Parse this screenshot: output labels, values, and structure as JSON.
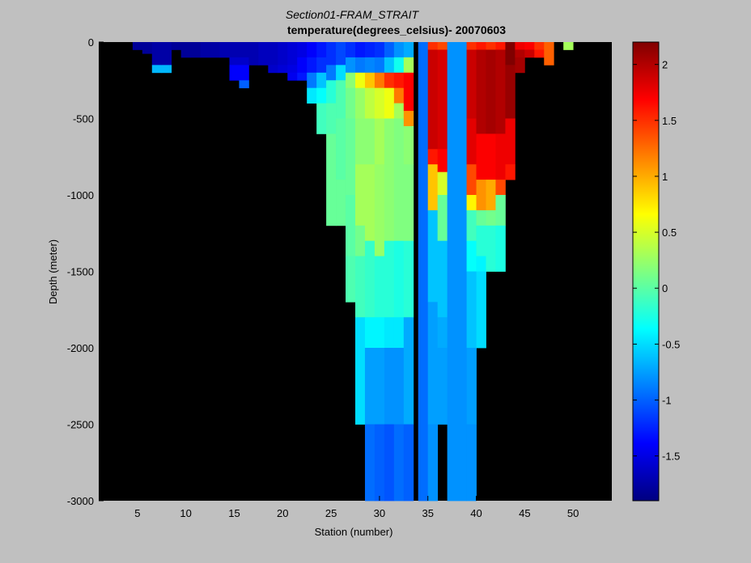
{
  "chart_data": {
    "type": "heatmap",
    "title": "Section01-FRAM_STRAIT",
    "subtitle": "temperature(degrees_celsius)- 20070603",
    "xlabel": "Station (number)",
    "ylabel": "Depth (meter)",
    "xlim": [
      1,
      54
    ],
    "ylim": [
      -3000,
      0
    ],
    "x_ticks": [
      5,
      10,
      15,
      20,
      25,
      30,
      35,
      40,
      45,
      50
    ],
    "y_ticks": [
      0,
      -500,
      -1000,
      -1500,
      -2000,
      -2500,
      -3000
    ],
    "colorbar": {
      "range": [
        -1.9,
        2.2
      ],
      "ticks": [
        2,
        1.5,
        1,
        0.5,
        0,
        -0.5,
        -1,
        -1.5
      ]
    },
    "background_color": "#000000",
    "stations": [
      {
        "x": 5,
        "w": 1.0,
        "cells": [
          [
            0,
            50,
            -1.8
          ]
        ]
      },
      {
        "x": 6,
        "w": 1.0,
        "cells": [
          [
            0,
            75,
            -1.8
          ]
        ]
      },
      {
        "x": 7,
        "w": 1.0,
        "cells": [
          [
            0,
            150,
            -1.75
          ],
          [
            150,
            200,
            -0.65
          ]
        ]
      },
      {
        "x": 8,
        "w": 1.0,
        "cells": [
          [
            0,
            150,
            -1.75
          ],
          [
            150,
            200,
            -0.65
          ]
        ]
      },
      {
        "x": 9,
        "w": 1.0,
        "cells": [
          [
            0,
            50,
            -1.8
          ]
        ]
      },
      {
        "x": 10,
        "w": 1.0,
        "cells": [
          [
            0,
            100,
            -1.8
          ]
        ]
      },
      {
        "x": 11,
        "w": 1.0,
        "cells": [
          [
            0,
            100,
            -1.8
          ]
        ]
      },
      {
        "x": 12,
        "w": 1.0,
        "cells": [
          [
            0,
            100,
            -1.75
          ]
        ]
      },
      {
        "x": 13,
        "w": 1.0,
        "cells": [
          [
            0,
            100,
            -1.75
          ]
        ]
      },
      {
        "x": 14,
        "w": 1.0,
        "cells": [
          [
            0,
            100,
            -1.7
          ]
        ]
      },
      {
        "x": 15,
        "w": 1.0,
        "cells": [
          [
            0,
            100,
            -1.7
          ],
          [
            100,
            150,
            -1.6
          ],
          [
            150,
            250,
            -1.4
          ]
        ]
      },
      {
        "x": 16,
        "w": 1.0,
        "cells": [
          [
            0,
            100,
            -1.7
          ],
          [
            100,
            150,
            -1.6
          ],
          [
            150,
            250,
            -1.4
          ],
          [
            250,
            300,
            -1.0
          ]
        ]
      },
      {
        "x": 17,
        "w": 1.0,
        "cells": [
          [
            0,
            150,
            -1.7
          ]
        ]
      },
      {
        "x": 18,
        "w": 1.0,
        "cells": [
          [
            0,
            150,
            -1.65
          ]
        ]
      },
      {
        "x": 19,
        "w": 1.0,
        "cells": [
          [
            0,
            150,
            -1.65
          ],
          [
            150,
            200,
            -1.6
          ]
        ]
      },
      {
        "x": 20,
        "w": 1.0,
        "cells": [
          [
            0,
            150,
            -1.6
          ],
          [
            150,
            200,
            -1.55
          ]
        ]
      },
      {
        "x": 21,
        "w": 1.0,
        "cells": [
          [
            0,
            150,
            -1.55
          ],
          [
            150,
            200,
            -1.5
          ],
          [
            200,
            250,
            -1.45
          ]
        ]
      },
      {
        "x": 22,
        "w": 1.0,
        "cells": [
          [
            0,
            100,
            -1.5
          ],
          [
            100,
            200,
            -1.4
          ],
          [
            200,
            250,
            -1.3
          ]
        ]
      },
      {
        "x": 23,
        "w": 1.0,
        "cells": [
          [
            0,
            100,
            -1.4
          ],
          [
            100,
            200,
            -1.3
          ],
          [
            200,
            300,
            -0.9
          ],
          [
            300,
            400,
            -0.45
          ]
        ]
      },
      {
        "x": 24,
        "w": 1.0,
        "cells": [
          [
            0,
            100,
            -1.3
          ],
          [
            100,
            200,
            -1.2
          ],
          [
            200,
            300,
            -0.6
          ],
          [
            300,
            400,
            -0.35
          ],
          [
            400,
            600,
            -0.1
          ]
        ]
      },
      {
        "x": 25,
        "w": 1.0,
        "cells": [
          [
            0,
            150,
            -1.2
          ],
          [
            150,
            250,
            -0.9
          ],
          [
            250,
            400,
            -0.2
          ],
          [
            400,
            600,
            -0.05
          ],
          [
            600,
            1200,
            0.05
          ]
        ]
      },
      {
        "x": 26,
        "w": 1.0,
        "cells": [
          [
            0,
            150,
            -1.1
          ],
          [
            150,
            250,
            -0.5
          ],
          [
            250,
            500,
            -0.05
          ],
          [
            500,
            900,
            0.0
          ],
          [
            900,
            1200,
            0.05
          ]
        ]
      },
      {
        "x": 27,
        "w": 1.0,
        "cells": [
          [
            0,
            100,
            -1.2
          ],
          [
            100,
            200,
            -0.8
          ],
          [
            200,
            300,
            0.2
          ],
          [
            300,
            500,
            0.1
          ],
          [
            500,
            1000,
            0.05
          ],
          [
            1000,
            1400,
            0.0
          ],
          [
            1400,
            1700,
            -0.05
          ]
        ]
      },
      {
        "x": 28,
        "w": 1.0,
        "cells": [
          [
            0,
            100,
            -1.3
          ],
          [
            100,
            200,
            -0.9
          ],
          [
            200,
            300,
            0.6
          ],
          [
            300,
            500,
            0.25
          ],
          [
            500,
            800,
            0.2
          ],
          [
            800,
            1200,
            0.3
          ],
          [
            1200,
            1400,
            0.1
          ],
          [
            1400,
            1800,
            -0.1
          ],
          [
            1800,
            2500,
            -0.5
          ]
        ]
      },
      {
        "x": 29,
        "w": 1.0,
        "cells": [
          [
            0,
            100,
            -1.25
          ],
          [
            100,
            200,
            -0.85
          ],
          [
            200,
            300,
            0.9
          ],
          [
            300,
            500,
            0.4
          ],
          [
            500,
            800,
            0.2
          ],
          [
            800,
            1300,
            0.3
          ],
          [
            1300,
            1800,
            -0.15
          ],
          [
            1800,
            2000,
            -0.4
          ],
          [
            2000,
            2500,
            -0.75
          ],
          [
            2500,
            3000,
            -0.95
          ]
        ]
      },
      {
        "x": 30,
        "w": 1.0,
        "cells": [
          [
            0,
            100,
            -1.2
          ],
          [
            100,
            200,
            -0.9
          ],
          [
            200,
            300,
            1.2
          ],
          [
            300,
            500,
            0.5
          ],
          [
            500,
            800,
            0.3
          ],
          [
            800,
            1400,
            0.25
          ],
          [
            1400,
            1800,
            -0.2
          ],
          [
            1800,
            2000,
            -0.4
          ],
          [
            2000,
            2500,
            -0.75
          ],
          [
            2500,
            3000,
            -1.0
          ]
        ]
      },
      {
        "x": 31,
        "w": 1.0,
        "cells": [
          [
            0,
            100,
            -1.0
          ],
          [
            100,
            200,
            -0.6
          ],
          [
            200,
            300,
            1.5
          ],
          [
            300,
            500,
            0.6
          ],
          [
            500,
            800,
            0.2
          ],
          [
            800,
            1300,
            0.2
          ],
          [
            1300,
            1800,
            -0.2
          ],
          [
            1800,
            2000,
            -0.45
          ],
          [
            2000,
            2500,
            -0.8
          ],
          [
            2500,
            3000,
            -1.05
          ]
        ]
      },
      {
        "x": 32,
        "w": 1.0,
        "cells": [
          [
            0,
            100,
            -0.8
          ],
          [
            100,
            200,
            -0.3
          ],
          [
            200,
            300,
            1.6
          ],
          [
            300,
            400,
            1.2
          ],
          [
            400,
            500,
            0.3
          ],
          [
            500,
            800,
            0.15
          ],
          [
            800,
            1300,
            0.15
          ],
          [
            1300,
            1800,
            -0.25
          ],
          [
            1800,
            2000,
            -0.45
          ],
          [
            2000,
            2500,
            -0.8
          ],
          [
            2500,
            3000,
            -0.95
          ]
        ]
      },
      {
        "x": 33,
        "w": 1.0,
        "cells": [
          [
            0,
            100,
            -0.7
          ],
          [
            100,
            200,
            0.3
          ],
          [
            200,
            450,
            1.7
          ],
          [
            450,
            550,
            1.1
          ],
          [
            550,
            800,
            0.2
          ],
          [
            800,
            1300,
            0.15
          ],
          [
            1300,
            1800,
            -0.2
          ],
          [
            1800,
            2500,
            -0.7
          ],
          [
            2500,
            3000,
            -1.0
          ]
        ]
      },
      {
        "x": 34.5,
        "w": 1.0,
        "cells": [
          [
            0,
            3000,
            -0.95
          ]
        ]
      },
      {
        "x": 35.5,
        "w": 1.0,
        "cells": [
          [
            0,
            50,
            1.5
          ],
          [
            50,
            300,
            1.9
          ],
          [
            300,
            700,
            1.9
          ],
          [
            700,
            800,
            1.6
          ],
          [
            800,
            1100,
            0.9
          ],
          [
            1100,
            1700,
            -0.6
          ],
          [
            1700,
            2500,
            -0.75
          ],
          [
            2500,
            3000,
            -0.8
          ]
        ]
      },
      {
        "x": 36.5,
        "w": 1.0,
        "cells": [
          [
            0,
            50,
            1.4
          ],
          [
            50,
            700,
            1.85
          ],
          [
            700,
            850,
            1.7
          ],
          [
            850,
            1000,
            0.5
          ],
          [
            1000,
            1300,
            0.05
          ],
          [
            1300,
            1800,
            -0.6
          ],
          [
            1800,
            2000,
            -0.7
          ],
          [
            2000,
            2500,
            -0.75
          ]
        ]
      },
      {
        "x": 38,
        "w": 2.0,
        "cells": [
          [
            0,
            3000,
            -0.8
          ]
        ]
      },
      {
        "x": 39.5,
        "w": 1.0,
        "cells": [
          [
            0,
            50,
            1.5
          ],
          [
            50,
            500,
            1.9
          ],
          [
            500,
            800,
            1.8
          ],
          [
            800,
            1000,
            1.4
          ],
          [
            1000,
            1100,
            0.7
          ],
          [
            1100,
            1300,
            -0.1
          ],
          [
            1300,
            1500,
            -0.35
          ],
          [
            1500,
            2000,
            -0.6
          ],
          [
            2000,
            2500,
            -0.75
          ],
          [
            2500,
            3000,
            -0.8
          ]
        ]
      },
      {
        "x": 40.5,
        "w": 1.0,
        "cells": [
          [
            0,
            50,
            1.6
          ],
          [
            50,
            600,
            2.0
          ],
          [
            600,
            900,
            1.7
          ],
          [
            900,
            1100,
            1.1
          ],
          [
            1100,
            1200,
            0.05
          ],
          [
            1200,
            1400,
            -0.2
          ],
          [
            1400,
            1500,
            -0.4
          ],
          [
            1500,
            2000,
            -0.5
          ]
        ]
      },
      {
        "x": 41.5,
        "w": 1.0,
        "cells": [
          [
            0,
            50,
            1.5
          ],
          [
            50,
            600,
            2.05
          ],
          [
            600,
            900,
            1.7
          ],
          [
            900,
            1100,
            1.0
          ],
          [
            1100,
            1200,
            0.1
          ],
          [
            1200,
            1500,
            -0.2
          ]
        ]
      },
      {
        "x": 42.5,
        "w": 1.0,
        "cells": [
          [
            0,
            50,
            1.6
          ],
          [
            50,
            600,
            2.0
          ],
          [
            600,
            900,
            1.75
          ],
          [
            900,
            1000,
            1.4
          ],
          [
            1000,
            1200,
            0.05
          ],
          [
            1200,
            1500,
            -0.25
          ]
        ]
      },
      {
        "x": 43.5,
        "w": 1.0,
        "cells": [
          [
            0,
            150,
            2.2
          ],
          [
            150,
            500,
            2.1
          ],
          [
            500,
            800,
            1.75
          ],
          [
            800,
            900,
            1.6
          ]
        ]
      },
      {
        "x": 44.5,
        "w": 1.0,
        "cells": [
          [
            0,
            50,
            1.75
          ],
          [
            50,
            100,
            2.0
          ],
          [
            100,
            200,
            2.05
          ]
        ]
      },
      {
        "x": 45.5,
        "w": 1.0,
        "cells": [
          [
            0,
            50,
            1.7
          ],
          [
            50,
            100,
            1.9
          ]
        ]
      },
      {
        "x": 46.5,
        "w": 1.0,
        "cells": [
          [
            0,
            50,
            1.5
          ],
          [
            50,
            100,
            1.6
          ]
        ]
      },
      {
        "x": 47.5,
        "w": 1.0,
        "cells": [
          [
            0,
            150,
            1.3
          ]
        ]
      },
      {
        "x": 49.5,
        "w": 1.0,
        "cells": [
          [
            0,
            50,
            0.3
          ]
        ]
      }
    ]
  }
}
